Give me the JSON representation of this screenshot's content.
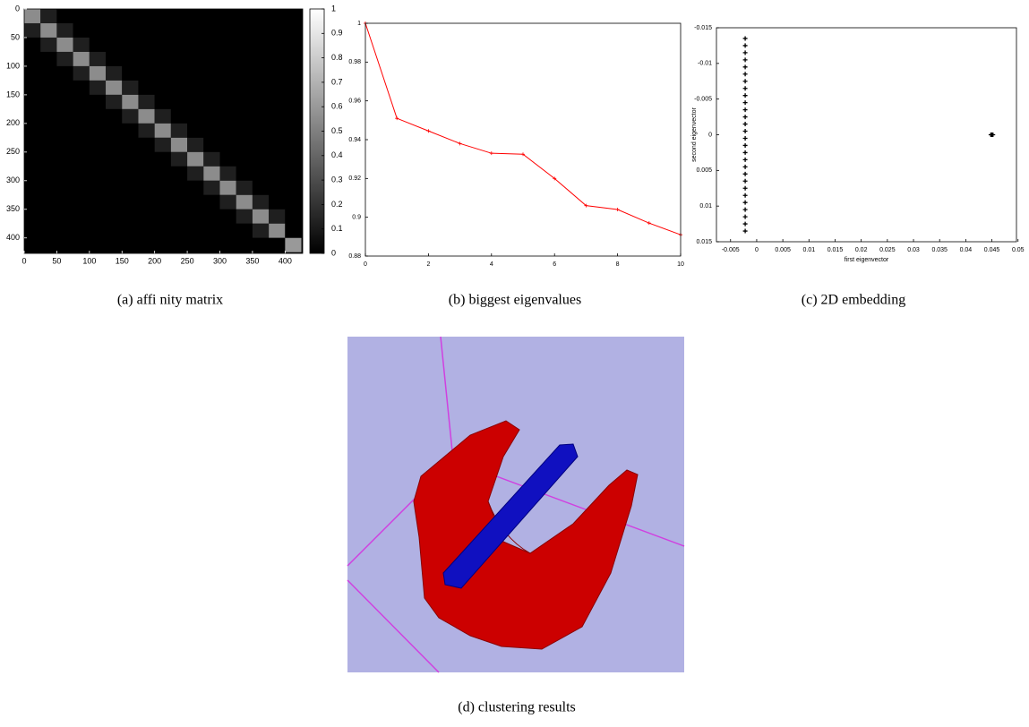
{
  "chart_data": [
    {
      "type": "heatmap",
      "caption": "(a) affi nity matrix",
      "bins": [
        0,
        25,
        50,
        75,
        100,
        125,
        150,
        175,
        200,
        225,
        250,
        275,
        300,
        325,
        350,
        375,
        400,
        425
      ],
      "values": [
        [
          0.55,
          0.12,
          0,
          0,
          0,
          0,
          0,
          0,
          0,
          0,
          0,
          0,
          0,
          0,
          0,
          0,
          0
        ],
        [
          0.12,
          0.55,
          0.12,
          0,
          0,
          0,
          0,
          0,
          0,
          0,
          0,
          0,
          0,
          0,
          0,
          0,
          0
        ],
        [
          0,
          0.12,
          0.55,
          0.12,
          0,
          0,
          0,
          0,
          0,
          0,
          0,
          0,
          0,
          0,
          0,
          0,
          0
        ],
        [
          0,
          0,
          0.12,
          0.55,
          0.12,
          0,
          0,
          0,
          0,
          0,
          0,
          0,
          0,
          0,
          0,
          0,
          0
        ],
        [
          0,
          0,
          0,
          0.12,
          0.55,
          0.12,
          0,
          0,
          0,
          0,
          0,
          0,
          0,
          0,
          0,
          0,
          0
        ],
        [
          0,
          0,
          0,
          0,
          0.12,
          0.55,
          0.12,
          0,
          0,
          0,
          0,
          0,
          0,
          0,
          0,
          0,
          0
        ],
        [
          0,
          0,
          0,
          0,
          0,
          0.12,
          0.55,
          0.12,
          0,
          0,
          0,
          0,
          0,
          0,
          0,
          0,
          0
        ],
        [
          0,
          0,
          0,
          0,
          0,
          0,
          0.12,
          0.55,
          0.12,
          0,
          0,
          0,
          0,
          0,
          0,
          0,
          0
        ],
        [
          0,
          0,
          0,
          0,
          0,
          0,
          0,
          0.12,
          0.55,
          0.12,
          0,
          0,
          0,
          0,
          0,
          0,
          0
        ],
        [
          0,
          0,
          0,
          0,
          0,
          0,
          0,
          0,
          0.12,
          0.55,
          0.12,
          0,
          0,
          0,
          0,
          0,
          0
        ],
        [
          0,
          0,
          0,
          0,
          0,
          0,
          0,
          0,
          0,
          0.12,
          0.55,
          0.12,
          0,
          0,
          0,
          0,
          0
        ],
        [
          0,
          0,
          0,
          0,
          0,
          0,
          0,
          0,
          0,
          0,
          0.12,
          0.55,
          0.12,
          0,
          0,
          0,
          0
        ],
        [
          0,
          0,
          0,
          0,
          0,
          0,
          0,
          0,
          0,
          0,
          0,
          0.12,
          0.55,
          0.12,
          0,
          0,
          0
        ],
        [
          0,
          0,
          0,
          0,
          0,
          0,
          0,
          0,
          0,
          0,
          0,
          0,
          0.12,
          0.55,
          0.12,
          0,
          0
        ],
        [
          0,
          0,
          0,
          0,
          0,
          0,
          0,
          0,
          0,
          0,
          0,
          0,
          0,
          0.12,
          0.55,
          0.12,
          0
        ],
        [
          0,
          0,
          0,
          0,
          0,
          0,
          0,
          0,
          0,
          0,
          0,
          0,
          0,
          0,
          0.12,
          0.55,
          0
        ],
        [
          0,
          0,
          0,
          0,
          0,
          0,
          0,
          0,
          0,
          0,
          0,
          0,
          0,
          0,
          0,
          0,
          0.6
        ]
      ],
      "xlim": [
        0,
        427
      ],
      "ylim": [
        0,
        427
      ],
      "y_inverted": true,
      "xticks": [
        0,
        50,
        100,
        150,
        200,
        250,
        300,
        350,
        400
      ],
      "yticks": [
        0,
        50,
        100,
        150,
        200,
        250,
        300,
        350,
        400
      ],
      "colorbar": {
        "lim": [
          0,
          1
        ],
        "ticks": [
          0,
          0.1,
          0.2,
          0.3,
          0.4,
          0.5,
          0.6,
          0.7,
          0.8,
          0.9,
          1
        ]
      }
    },
    {
      "type": "line",
      "caption": "(b) biggest eigenvalues",
      "color": "#ff0000",
      "x": [
        0,
        1,
        2,
        3,
        4,
        5,
        6,
        7,
        8,
        9,
        10
      ],
      "values": [
        1,
        0.951,
        0.9445,
        0.938,
        0.933,
        0.9325,
        0.92,
        0.906,
        0.904,
        0.897,
        0.891
      ],
      "xlim": [
        0,
        10
      ],
      "ylim": [
        0.88,
        1
      ],
      "xticks": [
        0,
        2,
        4,
        6,
        8,
        10
      ],
      "yticks": [
        0.88,
        0.9,
        0.92,
        0.94,
        0.96,
        0.98,
        1
      ]
    },
    {
      "type": "scatter",
      "caption": "(c) 2D embedding",
      "color": "#000000",
      "x_label": "first eigenvector",
      "y_label": "second eigenvector",
      "x": [
        -0.0022,
        -0.0022,
        -0.0022,
        -0.0022,
        -0.0022,
        -0.0022,
        -0.0022,
        -0.0022,
        -0.0022,
        -0.0022,
        -0.0022,
        -0.0022,
        -0.0022,
        -0.0022,
        -0.0022,
        -0.0022,
        -0.0022,
        -0.0022,
        -0.0022,
        -0.0022,
        -0.0022,
        -0.0022,
        -0.0022,
        -0.0022,
        -0.0022,
        -0.0022,
        -0.0022,
        -0.0022,
        0.0448,
        0.045,
        0.0452
      ],
      "values": [
        -0.0135,
        -0.0125,
        -0.0115,
        -0.0105,
        -0.0095,
        -0.0085,
        -0.0075,
        -0.0065,
        -0.0055,
        -0.0045,
        -0.0035,
        -0.0025,
        -0.0015,
        -0.0005,
        0.0005,
        0.0015,
        0.0025,
        0.0035,
        0.0045,
        0.0055,
        0.0065,
        0.0075,
        0.0085,
        0.0095,
        0.0105,
        0.0115,
        0.0125,
        0.0135,
        0,
        0,
        0
      ],
      "xlim": [
        -0.0077,
        0.0497
      ],
      "ylim": [
        -0.015,
        0.015
      ],
      "y_inverted": true,
      "xticks": [
        -0.005,
        0,
        0.005,
        0.01,
        0.015,
        0.02,
        0.025,
        0.03,
        0.035,
        0.04,
        0.045,
        0.05
      ],
      "yticks": [
        -0.015,
        -0.01,
        -0.005,
        0,
        0.005,
        0.01,
        0.015
      ]
    }
  ],
  "figure_d": {
    "caption": "(d) clustering results"
  }
}
